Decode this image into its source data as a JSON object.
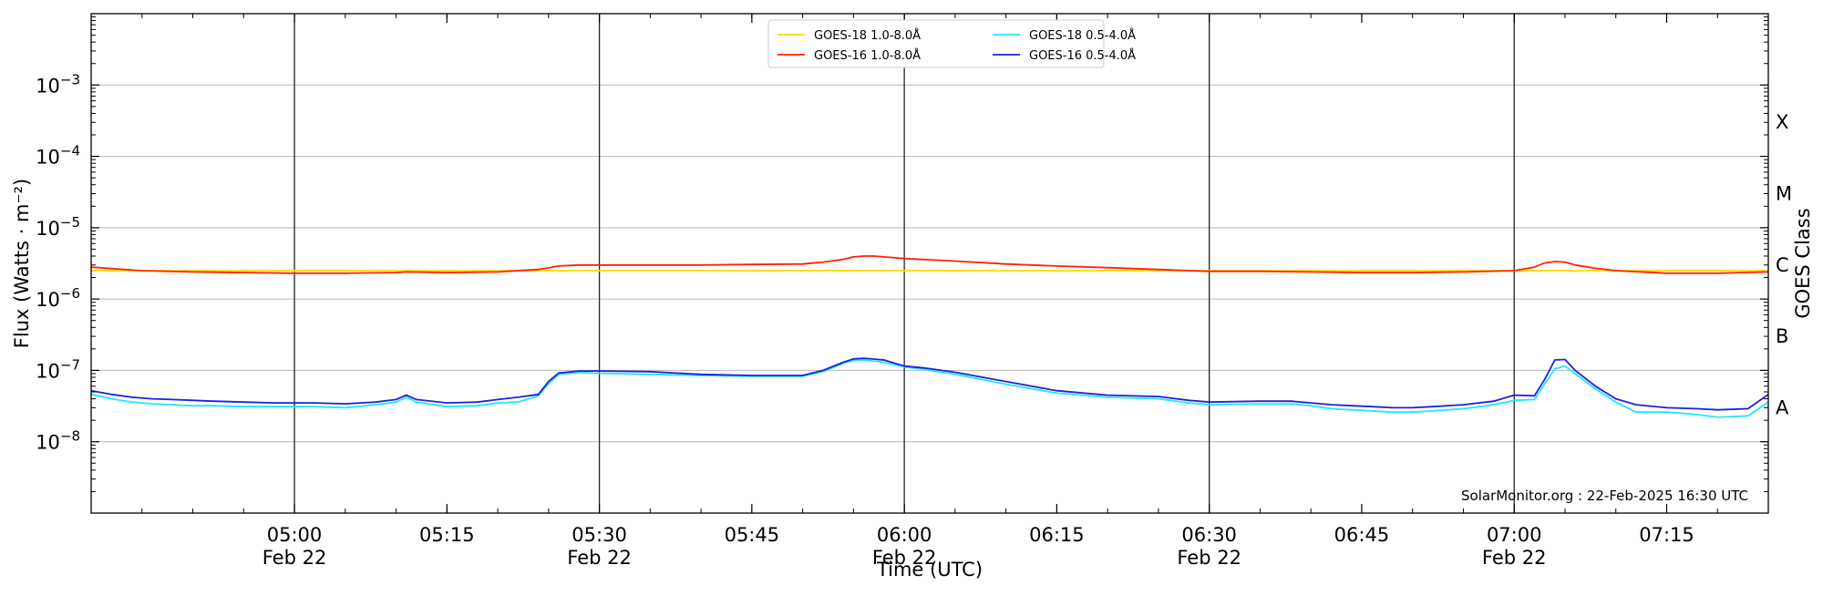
{
  "chart_data": {
    "type": "line",
    "title": "",
    "xlabel": "Time (UTC)",
    "ylabel": "Flux (Watts · m⁻²)",
    "right_label": "GOES Class",
    "scale": "log",
    "ylim": [
      1e-09,
      0.01
    ],
    "xlim": [
      "04:40",
      "07:25"
    ],
    "grid": "horizontal at each decade",
    "legend": "top-center",
    "credit": "SolarMonitor.org : 22-Feb-2025 16:30 UTC",
    "y_ticks": [
      {
        "value": 0.001,
        "base": "10",
        "exp": "−3"
      },
      {
        "value": 0.0001,
        "base": "10",
        "exp": "−4"
      },
      {
        "value": 1e-05,
        "base": "10",
        "exp": "−5"
      },
      {
        "value": 1e-06,
        "base": "10",
        "exp": "−6"
      },
      {
        "value": 1e-07,
        "base": "10",
        "exp": "−7"
      },
      {
        "value": 1e-08,
        "base": "10",
        "exp": "−8"
      }
    ],
    "x_ticks": [
      {
        "time": "05:00",
        "label": "05:00",
        "date": "Feb 22"
      },
      {
        "time": "05:15",
        "label": "05:15",
        "date": ""
      },
      {
        "time": "05:30",
        "label": "05:30",
        "date": "Feb 22"
      },
      {
        "time": "05:45",
        "label": "05:45",
        "date": ""
      },
      {
        "time": "06:00",
        "label": "06:00",
        "date": "Feb 22"
      },
      {
        "time": "06:15",
        "label": "06:15",
        "date": ""
      },
      {
        "time": "06:30",
        "label": "06:30",
        "date": "Feb 22"
      },
      {
        "time": "06:45",
        "label": "06:45",
        "date": ""
      },
      {
        "time": "07:00",
        "label": "07:00",
        "date": "Feb 22"
      },
      {
        "time": "07:15",
        "label": "07:15",
        "date": ""
      }
    ],
    "vlines": [
      "05:00",
      "05:30",
      "06:00",
      "06:30",
      "07:00"
    ],
    "classes": [
      {
        "label": "X",
        "value": 0.0003
      },
      {
        "label": "M",
        "value": 3e-05
      },
      {
        "label": "C",
        "value": 3e-06
      },
      {
        "label": "B",
        "value": 3e-07
      },
      {
        "label": "A",
        "value": 3e-08
      }
    ],
    "series": [
      {
        "name": "GOES-18 1.0-8.0Å",
        "color": "#ffd700",
        "x": [
          "04:40",
          "07:25"
        ],
        "y": [
          2.5e-06,
          2.5e-06
        ]
      },
      {
        "name": "GOES-16 1.0-8.0Å",
        "color": "#ff2200",
        "x": [
          "04:40",
          "04:45",
          "04:50",
          "04:55",
          "05:00",
          "05:05",
          "05:10",
          "05:11",
          "05:15",
          "05:20",
          "05:24",
          "05:26",
          "05:28",
          "05:30",
          "05:40",
          "05:45",
          "05:50",
          "05:52",
          "05:54",
          "05:55",
          "05:56",
          "05:57",
          "05:58",
          "06:00",
          "06:05",
          "06:10",
          "06:15",
          "06:20",
          "06:25",
          "06:28",
          "06:30",
          "06:35",
          "06:40",
          "06:45",
          "06:50",
          "06:55",
          "07:00",
          "07:02",
          "07:03",
          "07:04",
          "07:05",
          "07:06",
          "07:08",
          "07:10",
          "07:15",
          "07:20",
          "07:25"
        ],
        "y": [
          2.8e-06,
          2.5e-06,
          2.4e-06,
          2.35e-06,
          2.3e-06,
          2.3e-06,
          2.35e-06,
          2.4e-06,
          2.35e-06,
          2.4e-06,
          2.6e-06,
          2.9e-06,
          3e-06,
          3e-06,
          3e-06,
          3.05e-06,
          3.1e-06,
          3.3e-06,
          3.6e-06,
          3.9e-06,
          4e-06,
          4e-06,
          3.9e-06,
          3.7e-06,
          3.4e-06,
          3.1e-06,
          2.9e-06,
          2.75e-06,
          2.6e-06,
          2.5e-06,
          2.45e-06,
          2.45e-06,
          2.4e-06,
          2.35e-06,
          2.35e-06,
          2.4e-06,
          2.5e-06,
          2.8e-06,
          3.2e-06,
          3.35e-06,
          3.3e-06,
          3e-06,
          2.7e-06,
          2.5e-06,
          2.3e-06,
          2.3e-06,
          2.4e-06
        ]
      },
      {
        "name": "GOES-18 0.5-4.0Å",
        "color": "#22e5ff",
        "x": [
          "04:40",
          "04:42",
          "04:44",
          "04:46",
          "04:48",
          "04:50",
          "04:52",
          "04:55",
          "04:58",
          "05:00",
          "05:02",
          "05:05",
          "05:08",
          "05:10",
          "05:11",
          "05:12",
          "05:15",
          "05:18",
          "05:20",
          "05:22",
          "05:24",
          "05:25",
          "05:26",
          "05:28",
          "05:30",
          "05:35",
          "05:40",
          "05:45",
          "05:50",
          "05:52",
          "05:54",
          "05:55",
          "05:56",
          "05:58",
          "06:00",
          "06:02",
          "06:05",
          "06:10",
          "06:15",
          "06:20",
          "06:25",
          "06:28",
          "06:30",
          "06:35",
          "06:38",
          "06:40",
          "06:42",
          "06:44",
          "06:46",
          "06:48",
          "06:50",
          "06:52",
          "06:55",
          "06:58",
          "07:00",
          "07:02",
          "07:03",
          "07:04",
          "07:05",
          "07:06",
          "07:08",
          "07:10",
          "07:12",
          "07:15",
          "07:18",
          "07:20",
          "07:23",
          "07:25"
        ],
        "y": [
          4.6e-08,
          4e-08,
          3.6e-08,
          3.4e-08,
          3.3e-08,
          3.2e-08,
          3.2e-08,
          3.1e-08,
          3.1e-08,
          3.1e-08,
          3.1e-08,
          3e-08,
          3.3e-08,
          3.6e-08,
          4.2e-08,
          3.6e-08,
          3.1e-08,
          3.2e-08,
          3.5e-08,
          3.6e-08,
          4.4e-08,
          6.5e-08,
          8.8e-08,
          9.3e-08,
          9.1e-08,
          8.8e-08,
          8.5e-08,
          8.3e-08,
          8.3e-08,
          9.6e-08,
          1.25e-07,
          1.38e-07,
          1.4e-07,
          1.3e-07,
          1.12e-07,
          1.03e-07,
          8.8e-08,
          6.4e-08,
          4.8e-08,
          4.2e-08,
          4e-08,
          3.5e-08,
          3.3e-08,
          3.4e-08,
          3.4e-08,
          3.2e-08,
          2.9e-08,
          2.8e-08,
          2.7e-08,
          2.6e-08,
          2.6e-08,
          2.7e-08,
          2.9e-08,
          3.3e-08,
          3.8e-08,
          3.9e-08,
          6.5e-08,
          1.05e-07,
          1.15e-07,
          9e-08,
          5.5e-08,
          3.6e-08,
          2.6e-08,
          2.6e-08,
          2.4e-08,
          2.2e-08,
          2.3e-08,
          3.6e-08
        ]
      },
      {
        "name": "GOES-16 0.5-4.0Å",
        "color": "#1a22dd",
        "x": [
          "04:40",
          "04:42",
          "04:44",
          "04:46",
          "04:48",
          "04:50",
          "04:52",
          "04:55",
          "04:58",
          "05:00",
          "05:02",
          "05:05",
          "05:08",
          "05:10",
          "05:11",
          "05:12",
          "05:15",
          "05:18",
          "05:20",
          "05:22",
          "05:24",
          "05:25",
          "05:26",
          "05:28",
          "05:30",
          "05:35",
          "05:40",
          "05:45",
          "05:50",
          "05:52",
          "05:54",
          "05:55",
          "05:56",
          "05:58",
          "06:00",
          "06:02",
          "06:05",
          "06:10",
          "06:15",
          "06:20",
          "06:25",
          "06:28",
          "06:30",
          "06:35",
          "06:38",
          "06:40",
          "06:42",
          "06:44",
          "06:46",
          "06:48",
          "06:50",
          "06:52",
          "06:55",
          "06:58",
          "07:00",
          "07:02",
          "07:03",
          "07:04",
          "07:05",
          "07:06",
          "07:08",
          "07:10",
          "07:12",
          "07:15",
          "07:18",
          "07:20",
          "07:23",
          "07:25"
        ],
        "y": [
          5.2e-08,
          4.6e-08,
          4.2e-08,
          4e-08,
          3.9e-08,
          3.8e-08,
          3.7e-08,
          3.6e-08,
          3.5e-08,
          3.5e-08,
          3.5e-08,
          3.4e-08,
          3.6e-08,
          3.9e-08,
          4.5e-08,
          3.9e-08,
          3.5e-08,
          3.6e-08,
          3.9e-08,
          4.2e-08,
          4.6e-08,
          7e-08,
          9.2e-08,
          9.8e-08,
          9.8e-08,
          9.6e-08,
          8.8e-08,
          8.5e-08,
          8.5e-08,
          1e-07,
          1.3e-07,
          1.45e-07,
          1.48e-07,
          1.4e-07,
          1.15e-07,
          1.08e-07,
          9.4e-08,
          7e-08,
          5.2e-08,
          4.5e-08,
          4.3e-08,
          3.8e-08,
          3.6e-08,
          3.7e-08,
          3.7e-08,
          3.5e-08,
          3.3e-08,
          3.2e-08,
          3.1e-08,
          3e-08,
          3e-08,
          3.1e-08,
          3.3e-08,
          3.7e-08,
          4.5e-08,
          4.4e-08,
          7.5e-08,
          1.4e-07,
          1.42e-07,
          1e-07,
          6e-08,
          4e-08,
          3.3e-08,
          3e-08,
          2.9e-08,
          2.8e-08,
          2.9e-08,
          4.6e-08
        ]
      }
    ]
  }
}
